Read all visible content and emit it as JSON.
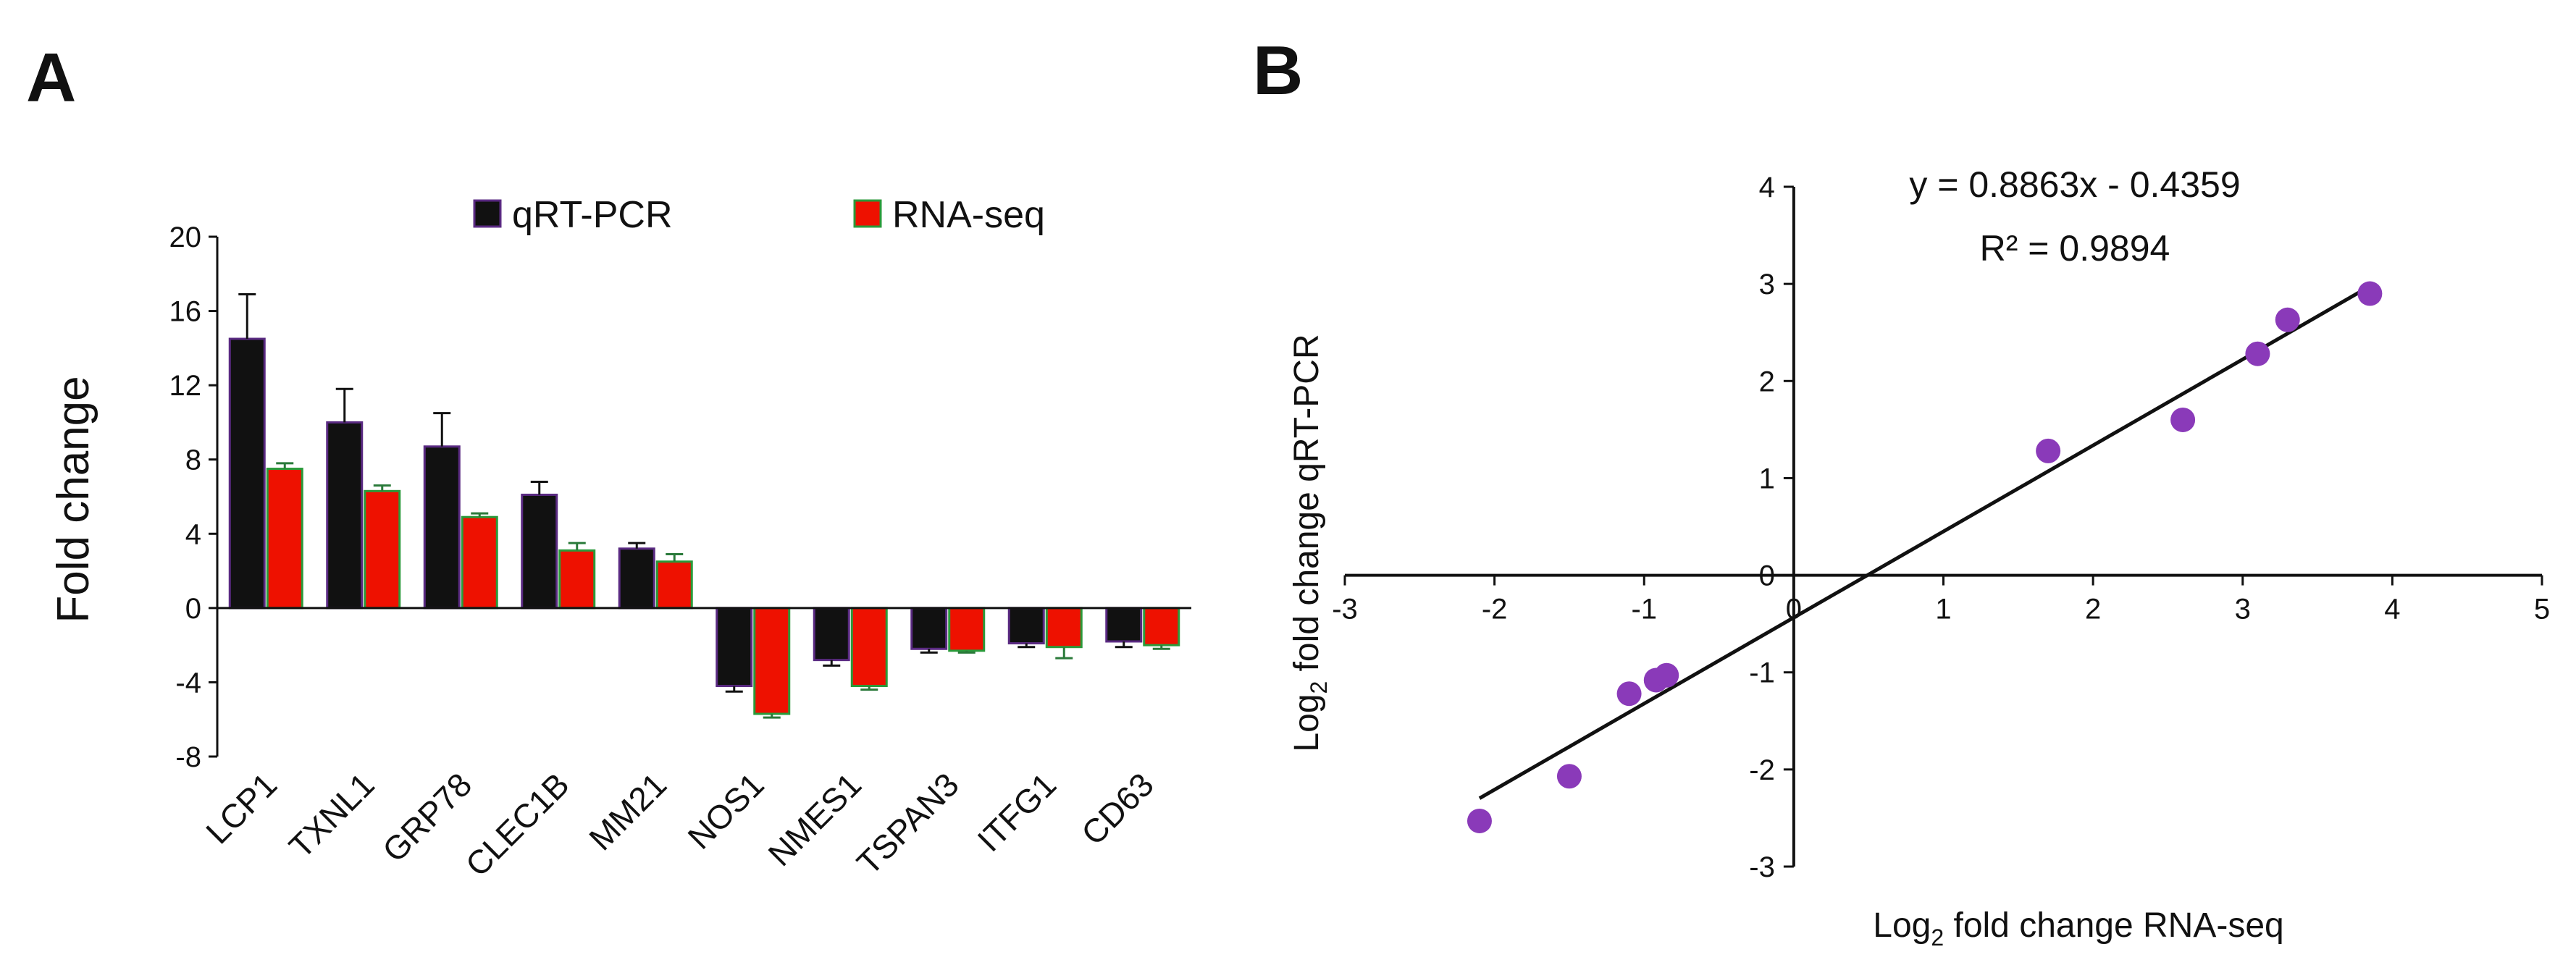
{
  "panel_labels": {
    "a": "A",
    "b": "B"
  },
  "colors": {
    "qrt": "#111111",
    "qrt_edge": "#5a2a82",
    "rna": "#ee1100",
    "rna_edge": "#2a9a3a",
    "points": "#8a3ab9",
    "fit_line": "#111111",
    "axis": "#111111"
  },
  "chart_data": [
    {
      "panel": "A",
      "type": "bar",
      "title": "",
      "ylabel": "Fold change",
      "xlabel": "",
      "ylim": [
        -8,
        20
      ],
      "yticks": [
        -8,
        -4,
        0,
        4,
        8,
        12,
        16,
        20
      ],
      "ytick_labels": [
        "-8",
        "-4",
        "0",
        "4",
        "8",
        "12",
        "16",
        "20"
      ],
      "grid": false,
      "legend_position": "top-center",
      "categories": [
        "LCP1",
        "TXNL1",
        "GRP78",
        "CLEC1B",
        "MM21",
        "NOS1",
        "NMES1",
        "TSPAN3",
        "ITFG1",
        "CD63"
      ],
      "series": [
        {
          "name": "qRT-PCR",
          "values": [
            14.5,
            10.0,
            8.7,
            6.1,
            3.2,
            -4.2,
            -2.8,
            -2.2,
            -1.9,
            -1.8
          ],
          "errors": [
            2.4,
            1.8,
            1.8,
            0.7,
            0.3,
            0.3,
            0.3,
            0.2,
            0.2,
            0.3
          ]
        },
        {
          "name": "RNA-seq",
          "values": [
            7.5,
            6.3,
            4.9,
            3.1,
            2.5,
            -5.7,
            -4.2,
            -2.3,
            -2.1,
            -2.0
          ],
          "errors": [
            0.3,
            0.3,
            0.2,
            0.4,
            0.4,
            0.2,
            0.2,
            0.1,
            0.6,
            0.2
          ]
        }
      ]
    },
    {
      "panel": "B",
      "type": "scatter",
      "title": "",
      "xlabel_prefix": "Log",
      "xlabel_sub": "2",
      "xlabel_rest": " fold change RNA-seq",
      "ylabel_prefix": "Log",
      "ylabel_sub": "2",
      "ylabel_rest": " fold change qRT-PCR",
      "xlim": [
        -3,
        5
      ],
      "ylim": [
        -3,
        4
      ],
      "xticks": [
        -3,
        -2,
        -1,
        0,
        1,
        2,
        3,
        4,
        5
      ],
      "xtick_labels": [
        "-3",
        "-2",
        "-1",
        "0",
        "1",
        "2",
        "3",
        "4",
        "5"
      ],
      "yticks": [
        -3,
        -2,
        -1,
        0,
        1,
        2,
        3,
        4
      ],
      "ytick_labels": [
        "-3",
        "-2",
        "-1",
        "0",
        "1",
        "2",
        "3",
        "4"
      ],
      "grid": false,
      "points": [
        {
          "x": -2.1,
          "y": -2.53
        },
        {
          "x": -1.5,
          "y": -2.07
        },
        {
          "x": -1.1,
          "y": -1.22
        },
        {
          "x": -0.92,
          "y": -1.08
        },
        {
          "x": -0.85,
          "y": -1.03
        },
        {
          "x": 1.7,
          "y": 1.28
        },
        {
          "x": 2.6,
          "y": 1.6
        },
        {
          "x": 3.1,
          "y": 2.28
        },
        {
          "x": 3.3,
          "y": 2.63
        },
        {
          "x": 3.85,
          "y": 2.9
        }
      ],
      "trendline": {
        "slope": 0.8863,
        "intercept": -0.4359,
        "x_range": [
          -2.1,
          3.85
        ]
      },
      "equation": "y = 0.8863x - 0.4359",
      "r_squared_label": "R² = 0.9894"
    }
  ]
}
